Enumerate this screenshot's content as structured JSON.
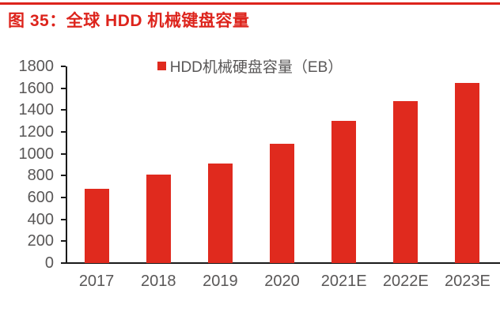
{
  "page": {
    "title": "图 35：全球 HDD 机械键盘容量"
  },
  "colors": {
    "accent_red": "#e02a1e",
    "title_red": "#dd241c",
    "text_gray": "#595757",
    "axis_black": "#1a1a1a",
    "background": "#ffffff"
  },
  "chart_data": {
    "type": "bar",
    "title": "",
    "legend": "HDD机械硬盘容量（EB）",
    "legend_position": "top-center",
    "categories": [
      "2017",
      "2018",
      "2019",
      "2020",
      "2021E",
      "2022E",
      "2023E"
    ],
    "values": [
      680,
      810,
      910,
      1090,
      1300,
      1480,
      1650
    ],
    "xlabel": "",
    "ylabel": "",
    "ylim": [
      0,
      1800
    ],
    "yticks": [
      0,
      200,
      400,
      600,
      800,
      1000,
      1200,
      1400,
      1600,
      1800
    ],
    "grid": false,
    "bar_color": "#e02a1e"
  }
}
